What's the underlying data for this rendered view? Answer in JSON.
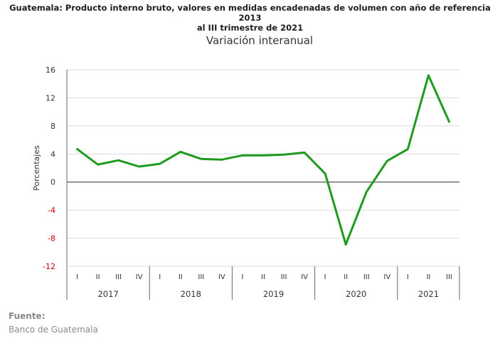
{
  "title_line1": "Guatemala: Producto interno bruto, valores en medidas encadenadas de volumen con año de referencia 2013",
  "title_line2": "al III trimestre de 2021",
  "source_label": "Fuente:",
  "source_value": "Banco de Guatemala",
  "colors": {
    "line": "#1f9a1f",
    "negative_tick": "#cc0000",
    "grid": "#d9d9d9",
    "axis": "#666666"
  },
  "chart_data": {
    "type": "line",
    "title": "Variación interanual",
    "xlabel": "",
    "ylabel": "Porcentajes",
    "ylim": [
      -12,
      16
    ],
    "yticks": [
      16,
      12,
      8,
      4,
      0,
      -4,
      -8,
      -12
    ],
    "grid": true,
    "quarter_labels": [
      "I",
      "II",
      "III",
      "IV",
      "I",
      "II",
      "III",
      "IV",
      "I",
      "II",
      "III",
      "IV",
      "I",
      "II",
      "III",
      "IV",
      "I",
      "II",
      "III"
    ],
    "years": [
      {
        "label": "2017",
        "quarters": 4
      },
      {
        "label": "2018",
        "quarters": 4
      },
      {
        "label": "2019",
        "quarters": 4
      },
      {
        "label": "2020",
        "quarters": 4
      },
      {
        "label": "2021",
        "quarters": 3
      }
    ],
    "series": [
      {
        "values": [
          4.7,
          2.5,
          3.1,
          2.2,
          2.6,
          4.3,
          3.3,
          3.2,
          3.8,
          3.8,
          3.9,
          4.2,
          1.2,
          -8.9,
          -1.4,
          3.0,
          4.7,
          15.2,
          8.6
        ]
      }
    ]
  }
}
